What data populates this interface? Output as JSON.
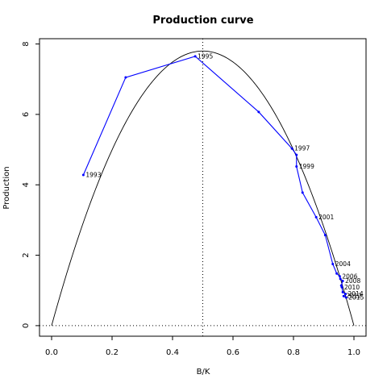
{
  "chart_data": {
    "type": "line",
    "title": "Production curve",
    "xlabel": "B/K",
    "ylabel": "Production",
    "xlim": [
      -0.04,
      1.04
    ],
    "ylim": [
      -0.3,
      8.15
    ],
    "x_ticks": [
      0.0,
      0.2,
      0.4,
      0.6,
      0.8,
      1.0
    ],
    "x_tick_labels": [
      "0.0",
      "0.2",
      "0.4",
      "0.6",
      "0.8",
      "1.0"
    ],
    "y_ticks": [
      0,
      2,
      4,
      6,
      8
    ],
    "y_tick_labels": [
      "0",
      "2",
      "4",
      "6",
      "8"
    ],
    "grid": false,
    "colors": {
      "trajectory": "#0000ff",
      "curve": "#000000"
    },
    "production_curve": {
      "r": 1.0,
      "K": 1.0,
      "max_production": 7.8
    },
    "reference_lines": {
      "vertical_x": 0.5,
      "horizontal_y": 0
    },
    "series": [
      {
        "points": [
          {
            "x": 0.105,
            "y": 4.28,
            "year": "1993"
          },
          {
            "x": 0.245,
            "y": 7.05,
            "year": ""
          },
          {
            "x": 0.475,
            "y": 7.65,
            "year": "1995"
          },
          {
            "x": 0.685,
            "y": 6.07,
            "year": ""
          },
          {
            "x": 0.795,
            "y": 5.03,
            "year": "1997"
          },
          {
            "x": 0.81,
            "y": 4.85,
            "year": ""
          },
          {
            "x": 0.81,
            "y": 4.52,
            "year": "1999"
          },
          {
            "x": 0.83,
            "y": 3.78,
            "year": ""
          },
          {
            "x": 0.875,
            "y": 3.08,
            "year": "2001"
          },
          {
            "x": 0.905,
            "y": 2.57,
            "year": ""
          },
          {
            "x": 0.93,
            "y": 1.75,
            "year": "2004"
          },
          {
            "x": 0.943,
            "y": 1.48,
            "year": ""
          },
          {
            "x": 0.953,
            "y": 1.4,
            "year": "2006"
          },
          {
            "x": 0.955,
            "y": 1.33,
            "year": ""
          },
          {
            "x": 0.963,
            "y": 1.27,
            "year": "2008"
          },
          {
            "x": 0.958,
            "y": 1.14,
            "year": ""
          },
          {
            "x": 0.96,
            "y": 1.09,
            "year": "2010"
          },
          {
            "x": 0.963,
            "y": 0.95,
            "year": ""
          },
          {
            "x": 0.972,
            "y": 0.9,
            "year": "2014"
          },
          {
            "x": 0.966,
            "y": 0.84,
            "year": "2012"
          },
          {
            "x": 0.974,
            "y": 0.8,
            "year": "2015"
          }
        ]
      }
    ]
  }
}
